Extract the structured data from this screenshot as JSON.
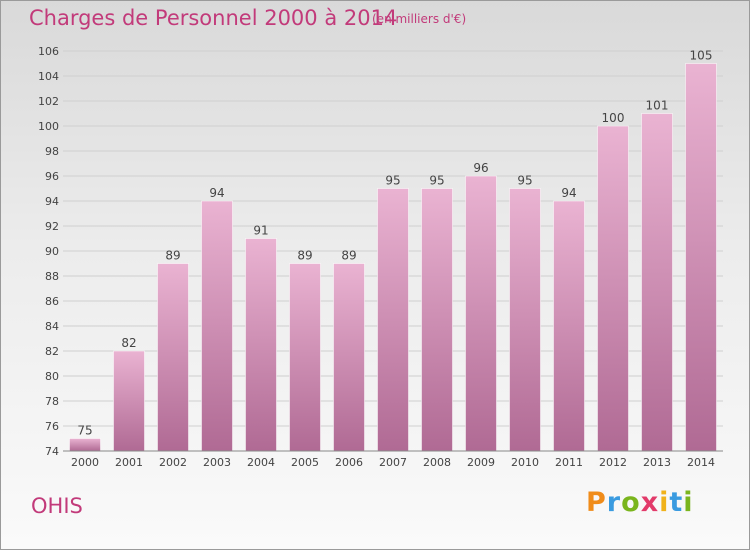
{
  "header": {
    "title": "Charges de Personnel 2000 à 2014",
    "subtitle": "(en milliers d'€)"
  },
  "footer": {
    "commune": "OHIS",
    "logo": {
      "letters": [
        "P",
        "r",
        "o",
        "x",
        "i",
        "t",
        "i"
      ],
      "colors": [
        "#f08c1a",
        "#3a9be0",
        "#7ab51d",
        "#e23a6a",
        "#f0b21a",
        "#3a9be0",
        "#7ab51d"
      ]
    }
  },
  "colors": {
    "bar_light": "#eab3d2",
    "bar_dark": "#b06a94",
    "text": "#c23a7a"
  },
  "chart_data": {
    "type": "bar",
    "categories": [
      "2000",
      "2001",
      "2002",
      "2003",
      "2004",
      "2005",
      "2006",
      "2007",
      "2008",
      "2009",
      "2010",
      "2011",
      "2012",
      "2013",
      "2014"
    ],
    "values": [
      75,
      82,
      89,
      94,
      91,
      89,
      89,
      95,
      95,
      96,
      95,
      94,
      100,
      101,
      105
    ],
    "title": "Charges de Personnel 2000 à 2014",
    "subtitle": "(en milliers d'€)",
    "xlabel": "",
    "ylabel": "",
    "ylim": [
      74,
      106
    ],
    "yticks": [
      74,
      76,
      78,
      80,
      82,
      84,
      86,
      88,
      90,
      92,
      94,
      96,
      98,
      100,
      102,
      104,
      106
    ],
    "grid": true,
    "legend": "none"
  }
}
